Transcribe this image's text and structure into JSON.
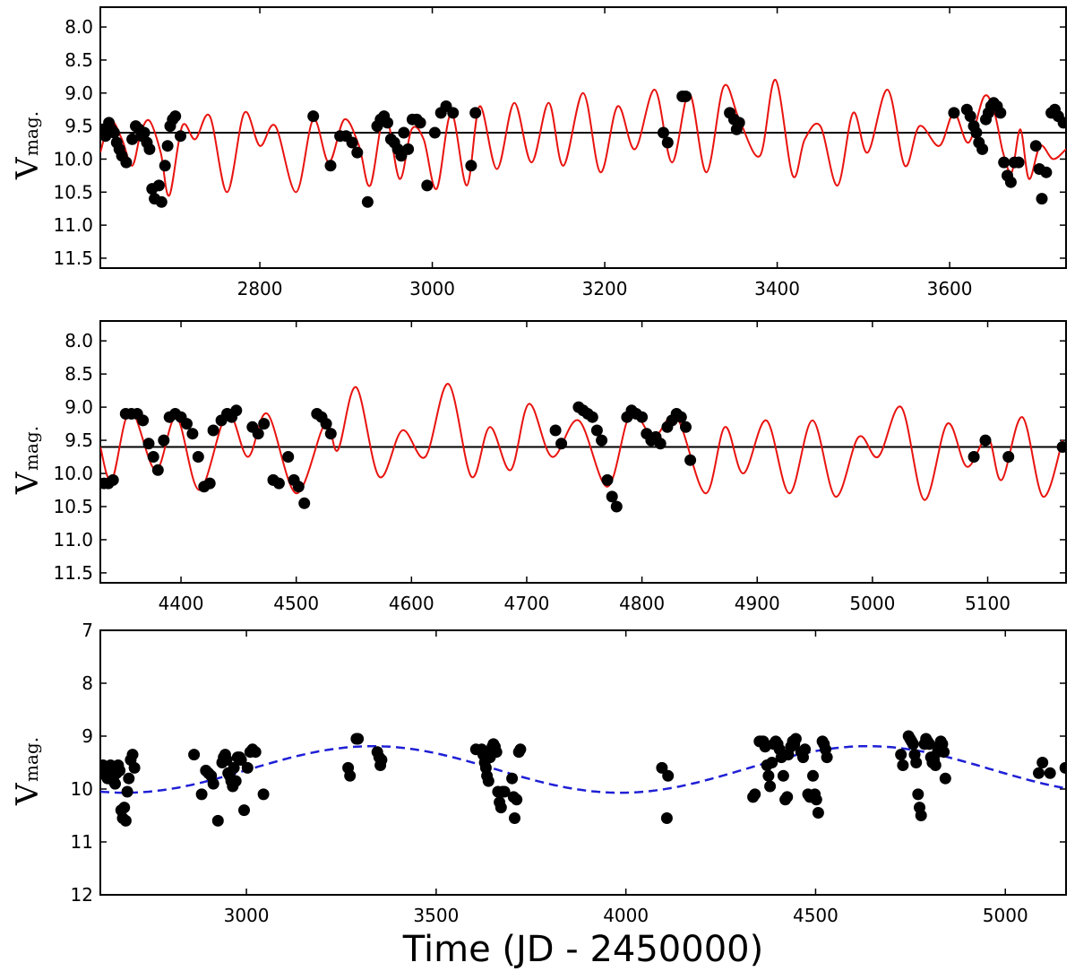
{
  "figure_xlabel": "Time (JD - 2450000)",
  "chart_data": [
    {
      "type": "scatter",
      "title": "",
      "ylabel_main": "V",
      "ylabel_sub": "mag.",
      "xlim": [
        2615,
        3735
      ],
      "ylim": [
        11.65,
        7.7
      ],
      "xticks": [
        2800,
        3000,
        3200,
        3400,
        3600
      ],
      "yticks": [
        8.0,
        8.5,
        9.0,
        9.5,
        10.0,
        10.5,
        11.0,
        11.5
      ],
      "ytick_labels": [
        "8.0",
        "8.5",
        "9.0",
        "9.5",
        "10.0",
        "10.5",
        "11.0",
        "11.5"
      ],
      "colors": {
        "points": "#000000",
        "model": "#e8130f",
        "mean_line": "#000000"
      },
      "mean_line": 9.6,
      "series": [
        {
          "name": "model",
          "style": "line",
          "x": [
            2615,
            2627,
            2640,
            2652,
            2662,
            2672,
            2685,
            2695,
            2710,
            2725,
            2742,
            2762,
            2782,
            2800,
            2818,
            2842,
            2862,
            2880,
            2898,
            2915,
            2928,
            2945,
            2962,
            2976,
            2990,
            3005,
            3022,
            3040,
            3055,
            3075,
            3095,
            3115,
            3135,
            3152,
            3175,
            3195,
            3215,
            3235,
            3258,
            3278,
            3298,
            3318,
            3338,
            3356,
            3380,
            3398,
            3418,
            3432,
            3450,
            3470,
            3488,
            3505,
            3528,
            3548,
            3565,
            3588,
            3605,
            3622,
            3640,
            3652,
            3662,
            3672,
            3682,
            3692,
            3705,
            3720,
            3735
          ],
          "y": [
            9.9,
            9.42,
            9.7,
            10.1,
            9.6,
            9.42,
            9.9,
            10.55,
            9.5,
            9.7,
            9.35,
            10.5,
            9.3,
            9.8,
            9.5,
            10.5,
            9.4,
            10.05,
            9.4,
            9.8,
            10.4,
            9.3,
            10.3,
            9.55,
            9.7,
            10.45,
            9.3,
            10.4,
            9.2,
            10.15,
            9.15,
            10.05,
            9.15,
            10.1,
            9.0,
            10.2,
            9.2,
            9.85,
            8.95,
            10.05,
            9.0,
            10.2,
            8.9,
            9.4,
            9.95,
            8.8,
            10.25,
            9.7,
            9.5,
            10.4,
            9.3,
            9.9,
            8.95,
            10.1,
            9.5,
            9.8,
            9.3,
            9.75,
            9.05,
            9.3,
            9.9,
            10.2,
            9.55,
            10.3,
            9.8,
            10.0,
            9.85
          ]
        },
        {
          "name": "observations",
          "style": "points",
          "x": [
            2618,
            2621,
            2625,
            2628,
            2631,
            2634,
            2637,
            2640,
            2645,
            2652,
            2656,
            2660,
            2663,
            2666,
            2669,
            2672,
            2675,
            2678,
            2683,
            2686,
            2690,
            2693,
            2696,
            2699,
            2702,
            2708,
            2862,
            2882,
            2893,
            2900,
            2907,
            2913,
            2925,
            2936,
            2940,
            2944,
            2948,
            2952,
            2956,
            2960,
            2964,
            2967,
            2972,
            2977,
            2982,
            2986,
            2994,
            3003,
            3010,
            3016,
            3024,
            3045,
            3050,
            3268,
            3273,
            3290,
            3294,
            3345,
            3350,
            3353,
            3356,
            3605,
            3620,
            3624,
            3628,
            3631,
            3634,
            3638,
            3642,
            3645,
            3648,
            3651,
            3655,
            3659,
            3663,
            3667,
            3671,
            3675,
            3680,
            3700,
            3704,
            3707,
            3712,
            3718,
            3722,
            3726,
            3732
          ],
          "y": [
            9.55,
            9.65,
            9.45,
            9.55,
            9.6,
            9.75,
            9.85,
            9.95,
            10.05,
            9.7,
            9.5,
            9.55,
            9.65,
            9.6,
            9.75,
            9.85,
            10.45,
            10.6,
            10.4,
            10.65,
            10.1,
            9.8,
            9.5,
            9.4,
            9.35,
            9.65,
            9.35,
            10.1,
            9.65,
            9.65,
            9.75,
            9.9,
            10.65,
            9.5,
            9.4,
            9.35,
            9.45,
            9.7,
            9.75,
            9.85,
            9.95,
            9.6,
            9.85,
            9.4,
            9.4,
            9.45,
            10.4,
            9.6,
            9.3,
            9.2,
            9.3,
            10.1,
            9.3,
            9.6,
            9.75,
            9.05,
            9.05,
            9.3,
            9.4,
            9.55,
            9.45,
            9.3,
            9.25,
            9.35,
            9.5,
            9.6,
            9.75,
            9.85,
            9.4,
            9.3,
            9.2,
            9.15,
            9.2,
            9.3,
            10.05,
            10.25,
            10.35,
            10.05,
            10.05,
            9.8,
            10.15,
            10.6,
            10.2,
            9.3,
            9.25,
            9.35,
            9.45
          ]
        }
      ]
    },
    {
      "type": "scatter",
      "title": "",
      "ylabel_main": "V",
      "ylabel_sub": "mag.",
      "xlim": [
        4330,
        5168
      ],
      "ylim": [
        11.65,
        7.7
      ],
      "xticks": [
        4400,
        4500,
        4600,
        4700,
        4800,
        4900,
        5000,
        5100
      ],
      "yticks": [
        8.0,
        8.5,
        9.0,
        9.5,
        10.0,
        10.5,
        11.0,
        11.5
      ],
      "ytick_labels": [
        "8.0",
        "8.5",
        "9.0",
        "9.5",
        "10.0",
        "10.5",
        "11.0",
        "11.5"
      ],
      "colors": {
        "points": "#000000",
        "model": "#e8130f",
        "mean_line": "#000000"
      },
      "mean_line": 9.6,
      "series": [
        {
          "name": "model",
          "style": "line",
          "x": [
            4330,
            4340,
            4356,
            4378,
            4396,
            4416,
            4440,
            4458,
            4475,
            4500,
            4525,
            4536,
            4552,
            4572,
            4592,
            4612,
            4632,
            4652,
            4668,
            4686,
            4702,
            4722,
            4745,
            4770,
            4790,
            4810,
            4830,
            4855,
            4872,
            4888,
            4908,
            4928,
            4948,
            4968,
            4988,
            5005,
            5025,
            5045,
            5065,
            5082,
            5100,
            5112,
            5130,
            5148,
            5165
          ],
          "y": [
            9.6,
            10.1,
            9.05,
            9.95,
            9.15,
            10.25,
            9.1,
            9.75,
            9.1,
            10.3,
            9.25,
            9.65,
            8.7,
            10.05,
            9.35,
            9.75,
            8.65,
            10.05,
            9.3,
            9.95,
            8.95,
            9.75,
            9.2,
            10.2,
            9.1,
            9.45,
            9.15,
            10.3,
            9.3,
            10.0,
            9.2,
            10.3,
            9.2,
            10.35,
            9.45,
            9.75,
            9.0,
            10.4,
            9.25,
            9.9,
            9.45,
            10.1,
            9.15,
            10.35,
            9.5
          ]
        },
        {
          "name": "observations",
          "style": "points",
          "x": [
            4333,
            4337,
            4341,
            4352,
            4357,
            4362,
            4367,
            4372,
            4376,
            4380,
            4385,
            4390,
            4395,
            4400,
            4405,
            4410,
            4415,
            4420,
            4425,
            4428,
            4435,
            4440,
            4444,
            4448,
            4462,
            4467,
            4472,
            4480,
            4485,
            4493,
            4498,
            4502,
            4507,
            4518,
            4522,
            4526,
            4530,
            4725,
            4730,
            4745,
            4749,
            4753,
            4757,
            4761,
            4765,
            4770,
            4774,
            4778,
            4787,
            4791,
            4795,
            4800,
            4804,
            4808,
            4812,
            4816,
            4822,
            4826,
            4830,
            4834,
            4838,
            4842,
            5088,
            5098,
            5118,
            5165
          ],
          "y": [
            10.15,
            10.15,
            10.1,
            9.1,
            9.1,
            9.1,
            9.2,
            9.55,
            9.75,
            9.95,
            9.5,
            9.15,
            9.1,
            9.15,
            9.25,
            9.4,
            9.75,
            10.2,
            10.15,
            9.35,
            9.2,
            9.1,
            9.15,
            9.05,
            9.3,
            9.4,
            9.25,
            10.1,
            10.15,
            9.75,
            10.1,
            10.2,
            10.45,
            9.1,
            9.15,
            9.25,
            9.4,
            9.35,
            9.55,
            9.0,
            9.05,
            9.1,
            9.15,
            9.35,
            9.5,
            10.1,
            10.35,
            10.5,
            9.15,
            9.05,
            9.1,
            9.15,
            9.4,
            9.5,
            9.45,
            9.55,
            9.3,
            9.2,
            9.1,
            9.15,
            9.3,
            9.8,
            9.75,
            9.5,
            9.75,
            9.6
          ]
        }
      ]
    },
    {
      "type": "scatter",
      "title": "",
      "ylabel_main": "V",
      "ylabel_sub": "mag.",
      "xlabel": "Time (JD - 2450000)",
      "xlim": [
        2615,
        5160
      ],
      "ylim": [
        12,
        7
      ],
      "xticks": [
        3000,
        3500,
        4000,
        4500,
        5000
      ],
      "yticks": [
        7,
        8,
        9,
        10,
        11,
        12
      ],
      "ytick_labels": [
        "7",
        "8",
        "9",
        "10",
        "11",
        "12"
      ],
      "colors": {
        "points": "#000000",
        "trend": "#1f1fd6"
      },
      "series": [
        {
          "name": "long-period trend",
          "style": "dashed-line",
          "mean": 9.63,
          "amplitude": 0.44,
          "period": 1305,
          "minimum_epoch": 3985
        },
        {
          "name": "observations",
          "style": "points",
          "x": [
            2618,
            2622,
            2626,
            2630,
            2634,
            2638,
            2642,
            2646,
            2650,
            2654,
            2658,
            2662,
            2666,
            2670,
            2674,
            2678,
            2682,
            2686,
            2690,
            2695,
            2700,
            2705,
            2862,
            2882,
            2893,
            2900,
            2907,
            2913,
            2925,
            2936,
            2940,
            2944,
            2948,
            2952,
            2956,
            2960,
            2964,
            2967,
            2972,
            2977,
            2982,
            2986,
            2994,
            3003,
            3010,
            3016,
            3024,
            3045,
            3268,
            3273,
            3290,
            3294,
            3345,
            3350,
            3353,
            3356,
            3605,
            3620,
            3624,
            3628,
            3631,
            3634,
            3638,
            3642,
            3645,
            3648,
            3651,
            3655,
            3659,
            3663,
            3667,
            3671,
            3675,
            3680,
            3700,
            3704,
            3707,
            3712,
            3718,
            3722,
            4095,
            4108,
            4111,
            4335,
            4340,
            4352,
            4357,
            4362,
            4367,
            4372,
            4376,
            4380,
            4385,
            4390,
            4395,
            4400,
            4405,
            4410,
            4415,
            4420,
            4425,
            4428,
            4435,
            4440,
            4444,
            4448,
            4462,
            4467,
            4472,
            4480,
            4485,
            4493,
            4498,
            4502,
            4507,
            4518,
            4522,
            4526,
            4530,
            4725,
            4730,
            4745,
            4749,
            4753,
            4757,
            4761,
            4765,
            4770,
            4774,
            4778,
            4787,
            4791,
            4795,
            4800,
            4804,
            4808,
            4812,
            4816,
            4822,
            4826,
            4830,
            4834,
            4838,
            4842,
            5088,
            5098,
            5118,
            5158
          ],
          "y": [
            9.65,
            9.55,
            9.6,
            9.75,
            9.8,
            9.7,
            9.55,
            9.6,
            9.85,
            9.9,
            9.7,
            9.55,
            9.65,
            10.4,
            10.55,
            10.35,
            10.6,
            10.05,
            9.8,
            9.45,
            9.35,
            9.6,
            9.35,
            10.1,
            9.65,
            9.7,
            9.75,
            9.9,
            10.6,
            9.5,
            9.4,
            9.35,
            9.45,
            9.7,
            9.75,
            9.85,
            9.95,
            9.6,
            9.85,
            9.4,
            9.4,
            9.45,
            10.4,
            9.6,
            9.3,
            9.25,
            9.3,
            10.1,
            9.6,
            9.75,
            9.05,
            9.05,
            9.3,
            9.4,
            9.55,
            9.45,
            9.25,
            9.25,
            9.35,
            9.5,
            9.6,
            9.75,
            9.85,
            9.4,
            9.3,
            9.2,
            9.15,
            9.2,
            9.3,
            10.05,
            10.25,
            10.35,
            10.05,
            10.05,
            9.8,
            10.15,
            10.55,
            10.2,
            9.3,
            9.25,
            9.6,
            10.55,
            9.75,
            10.15,
            10.1,
            9.1,
            9.1,
            9.1,
            9.2,
            9.55,
            9.75,
            9.95,
            9.5,
            9.15,
            9.1,
            9.15,
            9.25,
            9.4,
            9.75,
            10.2,
            10.15,
            9.35,
            9.2,
            9.1,
            9.15,
            9.05,
            9.3,
            9.4,
            9.25,
            10.1,
            10.15,
            9.75,
            10.1,
            10.2,
            10.45,
            9.1,
            9.15,
            9.25,
            9.4,
            9.35,
            9.55,
            9.0,
            9.05,
            9.1,
            9.15,
            9.35,
            9.5,
            10.1,
            10.35,
            10.5,
            9.15,
            9.05,
            9.1,
            9.15,
            9.4,
            9.5,
            9.45,
            9.55,
            9.3,
            9.2,
            9.1,
            9.15,
            9.3,
            9.8,
            9.7,
            9.5,
            9.7,
            9.6
          ]
        }
      ]
    }
  ]
}
